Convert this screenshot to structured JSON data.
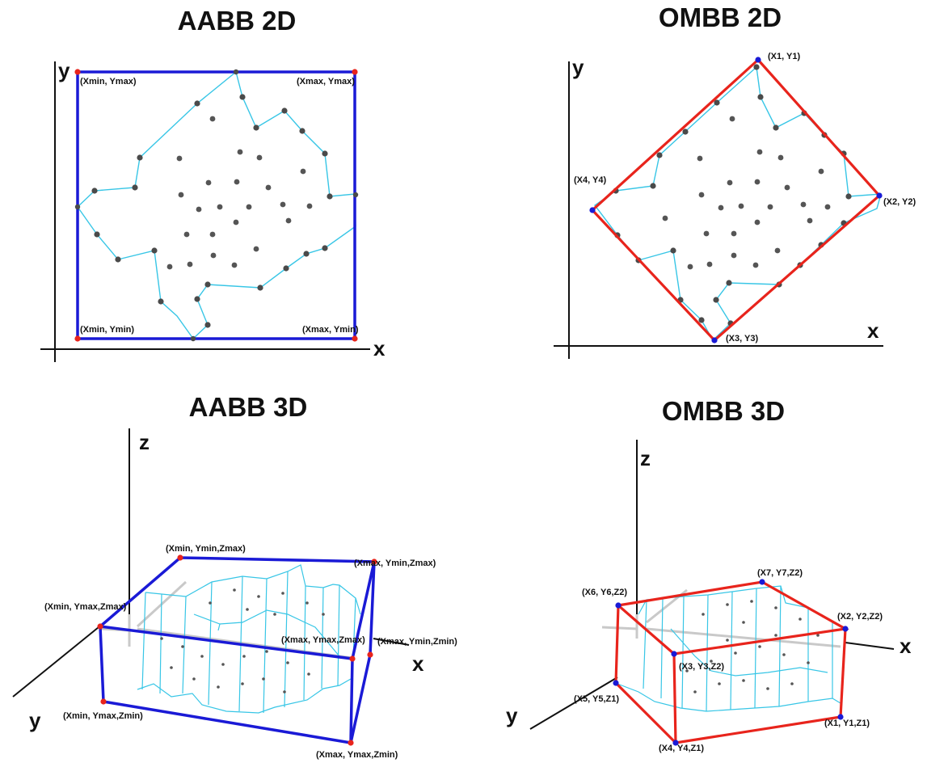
{
  "panels": {
    "aabb2d": {
      "title": "AABB 2D",
      "x_axis": "x",
      "y_axis": "y",
      "corners": {
        "top_left": "(Xmin, Ymax)",
        "top_right": "(Xmax, Ymax)",
        "bottom_left": "(Xmin, Ymin)",
        "bottom_right": "(Xmax, Ymin)"
      }
    },
    "ombb2d": {
      "title": "OMBB 2D",
      "x_axis": "x",
      "y_axis": "y",
      "corners": {
        "c1": "(X1, Y1)",
        "c2": "(X2, Y2)",
        "c3": "(X3, Y3)",
        "c4": "(X4, Y4)"
      }
    },
    "aabb3d": {
      "title": "AABB 3D",
      "x_axis": "x",
      "y_axis": "y",
      "z_axis": "z",
      "corners": {
        "a": "(Xmin, Ymin,Zmax)",
        "b": "(Xmax, Ymin,Zmax)",
        "c": "(Xmin, Ymax,Zmax)",
        "d": "(Xmax, Ymax,Zmax)",
        "e": "(Xmax, Ymin,Zmin)",
        "f": "(Xmin, Ymax,Zmin)",
        "g": "(Xmax, Ymax,Zmin)"
      }
    },
    "ombb3d": {
      "title": "OMBB 3D",
      "x_axis": "x",
      "y_axis": "y",
      "z_axis": "z",
      "corners": {
        "c7": "(X7, Y7,Z2)",
        "c6": "(X6, Y6,Z2)",
        "c2": "(X2, Y2,Z2)",
        "c3": "(X3, Y3,Z2)",
        "c5": "(X5, Y5,Z1)",
        "c1": "(X1, Y1,Z1)",
        "c4": "(X4, Y4,Z1)"
      }
    }
  },
  "colors": {
    "aabb_box": "#1a1ad6",
    "ombb_box": "#e8241c",
    "hull": "#38c6e6",
    "points": "#555555",
    "aabb_corner": "#e8241c",
    "ombb_corner": "#1a1ad6"
  }
}
